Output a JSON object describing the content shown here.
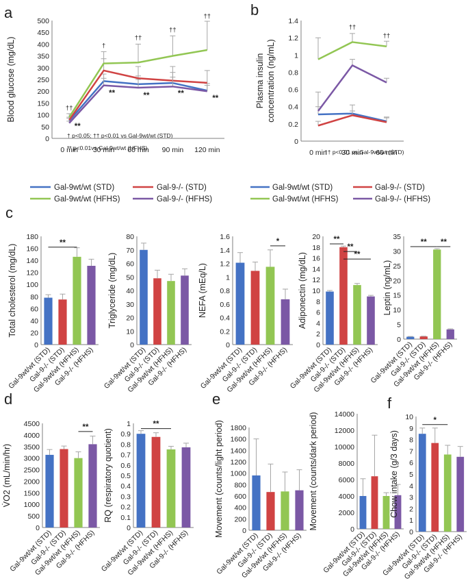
{
  "colors": {
    "wt_std": "#4472C4",
    "ko_std": "#D04343",
    "wt_hfhs": "#92C653",
    "ko_hfhs": "#7B58A5",
    "axis": "#7f7f7f",
    "error": "#a6a6a6"
  },
  "panel_labels": {
    "a": "a",
    "b": "b",
    "c": "c",
    "d": "d",
    "e": "e",
    "f": "f"
  },
  "groups": [
    "Gal-9wt/wt (STD)",
    "Gal-9-/- (STD)",
    "Gal-9wt/wt (HFHS)",
    "Gal-9-/- (HFHS)"
  ],
  "legend": {
    "wt_std": "Gal-9wt/wt (STD)",
    "ko_std": "Gal-9-/- (STD)",
    "wt_hfhs": "Gal-9wt/wt (HFHS)",
    "ko_hfhs": "Gal-9-/- (HFHS)"
  },
  "panel_a": {
    "note1": "† p<0.05; †† p<0.01 vs Gal-9wt/wt (STD)",
    "note2": "** p<0.01vs Gal-9wt/wt (HFHS)"
  },
  "panel_b": {
    "note": "†† p<0.01 vs Gal-9wt/wt (STD)"
  },
  "chart_data": [
    {
      "id": "a",
      "type": "line",
      "ylabel": "Blood glucose (mg/dL)",
      "ylim": [
        0,
        500
      ],
      "ystep": 50,
      "categories": [
        "0 min",
        "30 min",
        "60 min",
        "90 min",
        "120 min"
      ],
      "series": [
        {
          "key": "wt_std",
          "name": "Gal-9wt/wt (STD)",
          "values": [
            75,
            243,
            230,
            235,
            203
          ],
          "err": [
            10,
            30,
            35,
            45,
            30
          ]
        },
        {
          "key": "ko_std",
          "name": "Gal-9-/- (STD)",
          "values": [
            78,
            288,
            255,
            245,
            236
          ],
          "err": [
            12,
            50,
            50,
            60,
            52
          ]
        },
        {
          "key": "wt_hfhs",
          "name": "Gal-9wt/wt (HFHS)",
          "values": [
            90,
            318,
            322,
            350,
            375
          ],
          "err": [
            15,
            50,
            78,
            85,
            122
          ]
        },
        {
          "key": "ko_hfhs",
          "name": "Gal-9-/- (HFHS)",
          "values": [
            65,
            225,
            215,
            220,
            200
          ],
          "err": [
            8,
            30,
            35,
            40,
            25
          ]
        }
      ],
      "annotations": [
        {
          "cat": 0,
          "y": 120,
          "text": "††",
          "kind": "dag"
        },
        {
          "cat": 0,
          "y": 40,
          "text": "**",
          "kind": "sig"
        },
        {
          "cat": 1,
          "y": 385,
          "text": "†",
          "kind": "dag"
        },
        {
          "cat": 1,
          "y": 182,
          "text": "**",
          "kind": "sig"
        },
        {
          "cat": 2,
          "y": 418,
          "text": "††",
          "kind": "dag"
        },
        {
          "cat": 2,
          "y": 172,
          "text": "**",
          "kind": "sig"
        },
        {
          "cat": 3,
          "y": 452,
          "text": "††",
          "kind": "dag"
        },
        {
          "cat": 3,
          "y": 180,
          "text": "**",
          "kind": "sig"
        },
        {
          "cat": 4,
          "y": 510,
          "text": "††",
          "kind": "dag"
        },
        {
          "cat": 4,
          "y": 160,
          "text": "**",
          "kind": "sig"
        }
      ]
    },
    {
      "id": "b",
      "type": "line",
      "ylabel": [
        "Plasma insulin",
        "concentration (ng/mL)"
      ],
      "ylim": [
        0,
        1.4
      ],
      "ystep": 0.2,
      "ytick_labels": [
        "0",
        "0.2",
        "0.4",
        "0.6",
        "0.8",
        "1",
        "1.2",
        "1.4"
      ],
      "categories": [
        "0 min",
        "30 min",
        "60 min"
      ],
      "series": [
        {
          "key": "wt_std",
          "name": "Gal-9wt/wt (STD)",
          "values": [
            0.31,
            0.32,
            0.23
          ],
          "err": [
            0.09,
            0.1,
            0.05
          ]
        },
        {
          "key": "ko_std",
          "name": "Gal-9-/- (STD)",
          "values": [
            0.18,
            0.3,
            0.22
          ],
          "err": [
            0.05,
            0.05,
            0.05
          ]
        },
        {
          "key": "wt_hfhs",
          "name": "Gal-9wt/wt (HFHS)",
          "values": [
            0.95,
            1.15,
            1.1
          ],
          "err": [
            0.25,
            0.1,
            0.06
          ]
        },
        {
          "key": "ko_hfhs",
          "name": "Gal-9-/- (HFHS)",
          "values": [
            0.35,
            0.88,
            0.68
          ],
          "err": [
            0.22,
            0.07,
            0.05
          ]
        }
      ],
      "annotations": [
        {
          "cat": 1,
          "y": 1.3,
          "text": "††",
          "kind": "dag"
        },
        {
          "cat": 2,
          "y": 1.2,
          "text": "††",
          "kind": "dag"
        }
      ]
    },
    {
      "id": "c1",
      "type": "bar",
      "ylabel": "Total  cholesterol (mg/dL)",
      "ylim": [
        0,
        180
      ],
      "ystep": 20,
      "values": [
        78,
        75,
        146,
        131
      ],
      "err": [
        5,
        9,
        15,
        11
      ],
      "sig": [
        {
          "from": 0,
          "to": 2,
          "y": 162,
          "text": "**"
        }
      ]
    },
    {
      "id": "c2",
      "type": "bar",
      "ylabel": "Triglyceride (mg/dL)",
      "ylim": [
        0,
        80
      ],
      "ystep": 10,
      "values": [
        70,
        49,
        47,
        51
      ],
      "err": [
        5,
        6,
        5,
        5
      ],
      "sig": []
    },
    {
      "id": "c3",
      "type": "bar",
      "ylabel": "NEFA (mEq/L)",
      "ylim": [
        0,
        1.6
      ],
      "ystep": 0.2,
      "ytick_labels": [
        "0",
        "0.2",
        "0.4",
        "0.6",
        "0.8",
        "1",
        "1.2",
        "1.4",
        "1.6"
      ],
      "values": [
        1.21,
        1.09,
        1.15,
        0.67
      ],
      "err": [
        0.15,
        0.13,
        0.25,
        0.15
      ],
      "sig": [
        {
          "from": 2,
          "to": 3,
          "y": 1.46,
          "text": "*"
        }
      ]
    },
    {
      "id": "c4",
      "type": "bar",
      "ylabel": "Adiponectin (mg/dL)",
      "ylim": [
        0,
        20
      ],
      "ystep": 2,
      "values": [
        9.8,
        18,
        11,
        8.9
      ],
      "err": [
        0.2,
        0.2,
        0.3,
        0.2
      ],
      "sig": [
        {
          "from": 0,
          "to": 1,
          "y": 18.6,
          "text": "**"
        },
        {
          "from": 1,
          "to": 2,
          "y": 17.2,
          "text": "**"
        },
        {
          "from": 1,
          "to": 3,
          "y": 15.8,
          "text": "**"
        }
      ]
    },
    {
      "id": "c5",
      "type": "bar",
      "ylabel": "Leptin (ng/mL)",
      "ylim": [
        0,
        35
      ],
      "ystep": 5,
      "values": [
        0.8,
        0.9,
        30.5,
        3.3
      ],
      "err": [
        0.1,
        0.1,
        0.3,
        0.2
      ],
      "sig": [
        {
          "from": 0,
          "to": 2,
          "y": 31.5,
          "text": "**"
        },
        {
          "from": 2,
          "to": 3,
          "y": 31.5,
          "text": "**"
        }
      ]
    },
    {
      "id": "d1",
      "type": "bar",
      "ylabel": "V̇O2 (mL/min/hr)",
      "ylim": [
        0,
        4500
      ],
      "ystep": 500,
      "values": [
        3140,
        3390,
        3000,
        3600
      ],
      "err": [
        230,
        130,
        270,
        350
      ],
      "sig": [
        {
          "from": 2,
          "to": 3,
          "y": 4150,
          "text": "**"
        }
      ]
    },
    {
      "id": "d2",
      "type": "bar",
      "ylabel": "RQ (respiratory quotient)",
      "ylim": [
        0,
        1
      ],
      "ystep": 0.1,
      "ytick_labels": [
        "0",
        "0.1",
        "0.2",
        "0.3",
        "0.4",
        "0.5",
        "0.6",
        "0.7",
        "0.8",
        "0.9",
        "1"
      ],
      "values": [
        0.9,
        0.87,
        0.75,
        0.77
      ],
      "err": [
        0.03,
        0.04,
        0.03,
        0.04
      ],
      "sig": [
        {
          "from": 0,
          "to": 2,
          "y": 0.95,
          "text": "**"
        }
      ]
    },
    {
      "id": "e1",
      "type": "bar",
      "ylabel": "Movement (counts/light period)",
      "ylim": [
        0,
        1800
      ],
      "ystep": 200,
      "values": [
        960,
        670,
        680,
        700
      ],
      "err": [
        640,
        490,
        340,
        360
      ],
      "sig": []
    },
    {
      "id": "e2",
      "type": "bar",
      "ylabel": "Movement (counts/dark period)",
      "ylim": [
        0,
        14000
      ],
      "ystep": 2000,
      "values": [
        4000,
        6400,
        4000,
        4100
      ],
      "err": [
        2100,
        5000,
        400,
        1300
      ],
      "sig": []
    },
    {
      "id": "f",
      "type": "bar",
      "ylabel": "Chow intake (g/3 days)",
      "ylim": [
        0,
        10
      ],
      "ystep": 1,
      "values": [
        8.5,
        7.7,
        6.7,
        6.5
      ],
      "err": [
        0.5,
        1.3,
        0.8,
        0.9
      ],
      "sig": [
        {
          "from": 0,
          "to": 2,
          "y": 9.3,
          "text": "*"
        }
      ]
    }
  ]
}
